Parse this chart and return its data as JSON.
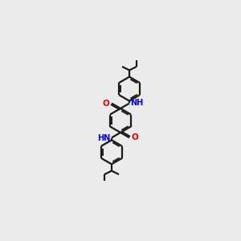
{
  "background_color": "#ebebeb",
  "bond_color": "#1a1a1a",
  "N_color": "#0000ee",
  "O_color": "#ee0000",
  "linewidth": 1.6,
  "fig_size": [
    3.0,
    3.0
  ],
  "dpi": 100,
  "xlim": [
    0,
    10
  ],
  "ylim": [
    0,
    20
  ]
}
